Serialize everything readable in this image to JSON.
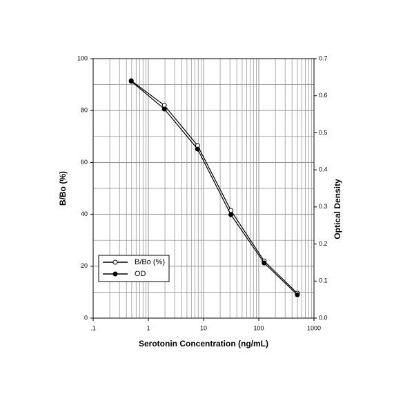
{
  "chart_data": {
    "type": "line",
    "x_label": "Serotonin Concentration (ng/mL)",
    "y_label": "B/Bo (%)",
    "y2_label": "Optical Density",
    "x": [
      0.49,
      1.95,
      7.8,
      31.25,
      125,
      500
    ],
    "xscale": "log",
    "xlim": [
      0.1,
      1000
    ],
    "xticks": [
      {
        "value": 0.1,
        "label": ".1"
      },
      1,
      10,
      100,
      1000
    ],
    "ylim": [
      0,
      100
    ],
    "yticks": [
      0,
      20,
      40,
      60,
      80,
      100
    ],
    "y2lim": [
      0,
      0.7
    ],
    "y2ticks": [
      {
        "value": 0,
        "label": "0.0"
      },
      0.1,
      0.2,
      0.3,
      0.4,
      0.5,
      0.6,
      0.7
    ],
    "grid": true,
    "legend": "lower left",
    "series": [
      {
        "name": "B/Bo (%)",
        "color": "#000000",
        "marker": "open",
        "values": [
          91.5,
          82,
          66.5,
          41.5,
          22,
          9.6
        ]
      },
      {
        "name": "OD",
        "color": "#000000",
        "marker": "filled",
        "axis": "y2",
        "values": [
          0.639,
          0.564,
          0.456,
          0.279,
          0.149,
          0.063
        ]
      }
    ]
  }
}
